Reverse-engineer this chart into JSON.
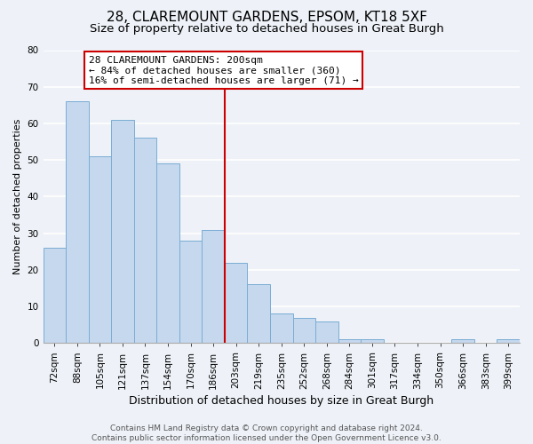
{
  "title": "28, CLAREMOUNT GARDENS, EPSOM, KT18 5XF",
  "subtitle": "Size of property relative to detached houses in Great Burgh",
  "xlabel": "Distribution of detached houses by size in Great Burgh",
  "ylabel": "Number of detached properties",
  "bin_labels": [
    "72sqm",
    "88sqm",
    "105sqm",
    "121sqm",
    "137sqm",
    "154sqm",
    "170sqm",
    "186sqm",
    "203sqm",
    "219sqm",
    "235sqm",
    "252sqm",
    "268sqm",
    "284sqm",
    "301sqm",
    "317sqm",
    "334sqm",
    "350sqm",
    "366sqm",
    "383sqm",
    "399sqm"
  ],
  "bar_heights": [
    26,
    66,
    51,
    61,
    56,
    49,
    28,
    31,
    22,
    16,
    8,
    7,
    6,
    1,
    1,
    0,
    0,
    0,
    1,
    0,
    1
  ],
  "bar_color": "#c5d8ed",
  "bar_edge_color": "#7aadd4",
  "vline_x_index": 8,
  "vline_color": "#cc0000",
  "annotation_text": "28 CLAREMOUNT GARDENS: 200sqm\n← 84% of detached houses are smaller (360)\n16% of semi-detached houses are larger (71) →",
  "annotation_box_edge_color": "#cc0000",
  "annotation_box_face_color": "#ffffff",
  "ylim": [
    0,
    80
  ],
  "yticks": [
    0,
    10,
    20,
    30,
    40,
    50,
    60,
    70,
    80
  ],
  "footer_text": "Contains HM Land Registry data © Crown copyright and database right 2024.\nContains public sector information licensed under the Open Government Licence v3.0.",
  "background_color": "#eef2f8",
  "plot_background_color": "#eef2f8",
  "grid_color": "#ffffff",
  "title_fontsize": 11,
  "subtitle_fontsize": 9.5,
  "xlabel_fontsize": 9,
  "ylabel_fontsize": 8,
  "tick_fontsize": 7.5,
  "annotation_fontsize": 8,
  "footer_fontsize": 6.5
}
